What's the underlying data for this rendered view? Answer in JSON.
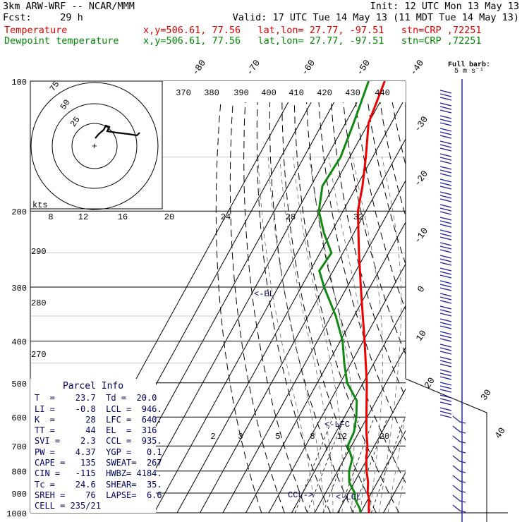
{
  "header": {
    "line1_left": "3km ARW-WRF -- NCAR/MMM",
    "line1_right": "Init: 12 UTC Mon 13 May 13",
    "line2_left": "Fcst:     29 h",
    "line2_right": "Valid: 17 UTC Tue 14 May 13 (11 MDT Tue 14 May 13)",
    "temp_label": "Temperature",
    "temp_info": "x,y=506.61, 77.56   lat,lon= 27.77, -97.51   stn=CRP ,72251",
    "dew_label": "Dewpoint temperature",
    "dew_info": "x,y=506.61, 77.56   lat,lon= 27.77, -97.51   stn=CRP ,72251"
  },
  "barb_legend": {
    "line1": "Full barb:",
    "line2": "5 m s⁻¹"
  },
  "parcel_info": {
    "title": "Parcel Info",
    "rows": [
      "T  =    23.7  Td =  20.0",
      "LI =    -0.8  LCL =  946.",
      "K  =      28  LFC =  640.",
      "TT =      44  EL  =  316",
      "SVI =    2.3  CCL =  935.",
      "PW =    4.37  YGP =   0.1",
      "CAPE =   135  SWEAT=  267",
      "CIN =   -115  HWBZ= 4184.",
      "Tc =    24.6  SHEAR=  35.",
      "SREH =    76  LAPSE=  6.6",
      "CELL = 235/21"
    ]
  },
  "annotations": {
    "el": "<-EL",
    "lfc": "<-LFC",
    "ccl": "CCL->",
    "lcl": "<-LCL",
    "kts": "kts"
  },
  "hodograph": {
    "ring_labels": [
      "75",
      "50",
      "25"
    ],
    "speed_labels": [
      "8",
      "12",
      "16",
      "20",
      "24",
      "28",
      "32"
    ]
  },
  "axes": {
    "pressure_levels": [
      100,
      200,
      300,
      400,
      500,
      600,
      700,
      800,
      900,
      1000
    ],
    "isotherm_labels": [
      "-80",
      "-70",
      "-60",
      "-50",
      "-40",
      "-30",
      "-20",
      "-10",
      "0",
      "10",
      "20",
      "30",
      "40"
    ],
    "theta_e_labels": [
      "370",
      "380",
      "390",
      "400",
      "410",
      "420",
      "430",
      "440"
    ],
    "theta_labels": [
      "290",
      "280",
      "270"
    ],
    "mixing_ratio_labels": [
      "2",
      "3",
      "5",
      "8",
      "12",
      "20"
    ]
  },
  "colors": {
    "temperature": "#ee0000",
    "dewpoint": "#118811",
    "annot": "#000066",
    "barb": "#2a2a9c",
    "hodo": "#000000"
  },
  "chart_data": {
    "type": "line",
    "chart_kind": "skew-T log-p sounding",
    "y_axis": "pressure (hPa), logarithmic",
    "ylim": [
      1000,
      100
    ],
    "series": [
      {
        "name": "Temperature",
        "points": [
          [
            1000,
            23.7
          ],
          [
            975,
            22.5
          ],
          [
            950,
            21.4
          ],
          [
            925,
            20.2
          ],
          [
            900,
            18.4
          ],
          [
            850,
            16.0
          ],
          [
            800,
            12.6
          ],
          [
            750,
            9.6
          ],
          [
            700,
            7.0
          ],
          [
            650,
            3.2
          ],
          [
            600,
            -0.4
          ],
          [
            550,
            -4.2
          ],
          [
            500,
            -8.4
          ],
          [
            450,
            -13.6
          ],
          [
            400,
            -19.4
          ],
          [
            350,
            -26.2
          ],
          [
            300,
            -34.0
          ],
          [
            250,
            -43.0
          ],
          [
            200,
            -53.5
          ],
          [
            175,
            -57.5
          ],
          [
            150,
            -63.0
          ],
          [
            125,
            -70.0
          ],
          [
            100,
            -73.0
          ]
        ]
      },
      {
        "name": "Dewpoint temperature",
        "points": [
          [
            1000,
            20.0
          ],
          [
            975,
            18.5
          ],
          [
            950,
            16.2
          ],
          [
            925,
            14.0
          ],
          [
            900,
            12.8
          ],
          [
            850,
            7.8
          ],
          [
            800,
            5.0
          ],
          [
            750,
            3.5
          ],
          [
            700,
            -1.6
          ],
          [
            650,
            -2.2
          ],
          [
            600,
            -4.8
          ],
          [
            550,
            -8.5
          ],
          [
            500,
            -17.0
          ],
          [
            450,
            -23.0
          ],
          [
            400,
            -29.0
          ],
          [
            350,
            -38.0
          ],
          [
            300,
            -50.0
          ],
          [
            275,
            -56.0
          ],
          [
            250,
            -55.0
          ],
          [
            225,
            -63.0
          ],
          [
            200,
            -70.5
          ],
          [
            175,
            -75.0
          ],
          [
            150,
            -74.0
          ],
          [
            125,
            -76.5
          ],
          [
            100,
            -80.0
          ]
        ]
      }
    ]
  }
}
